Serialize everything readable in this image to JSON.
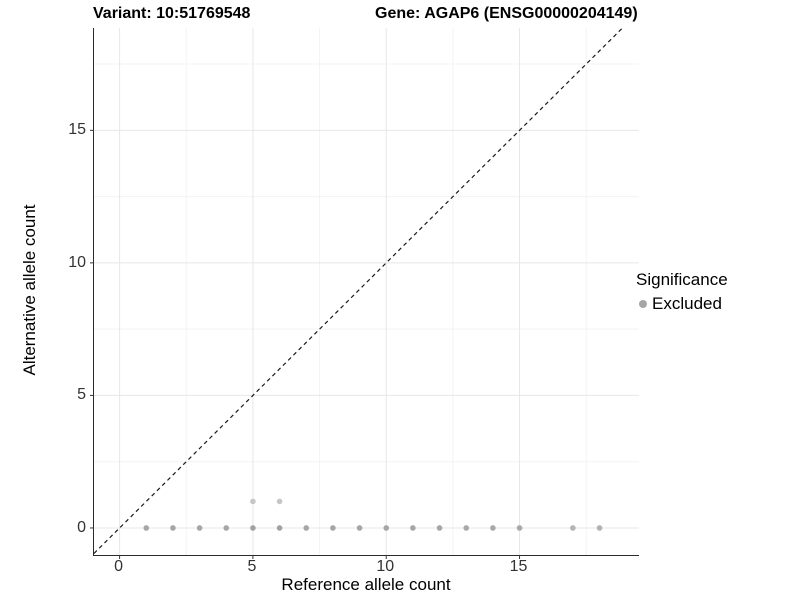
{
  "chart_data": {
    "type": "scatter",
    "title_left": "Variant: 10:51769548",
    "title_right": "Gene: AGAP6 (ENSG00000204149)",
    "xlabel": "Reference allele count",
    "ylabel": "Alternative allele count",
    "xlim": [
      -0.96,
      19.48
    ],
    "ylim": [
      -1.02,
      18.86
    ],
    "x_ticks": [
      0,
      5,
      10,
      15
    ],
    "y_ticks": [
      0,
      5,
      10,
      15
    ],
    "x_minor_ticks": [
      2.5,
      7.5,
      12.5,
      17.5
    ],
    "y_minor_ticks": [
      2.5,
      7.5,
      12.5,
      17.5
    ],
    "grid": true,
    "legend": {
      "position": "right",
      "title": "Significance",
      "entries": [
        {
          "label": "Excluded",
          "color": "#a6a6a6"
        }
      ]
    },
    "identity_line": {
      "type": "dashed",
      "slope": 1,
      "intercept": 0,
      "color": "#1a1a1a"
    },
    "series": [
      {
        "name": "Excluded",
        "points": [
          {
            "x": 1,
            "y": 0,
            "color": "#a6a6a6"
          },
          {
            "x": 2,
            "y": 0,
            "color": "#a6a6a6"
          },
          {
            "x": 3,
            "y": 0,
            "color": "#a6a6a6"
          },
          {
            "x": 4,
            "y": 0,
            "color": "#a6a6a6"
          },
          {
            "x": 5,
            "y": 0,
            "color": "#a2a2a2"
          },
          {
            "x": 6,
            "y": 0,
            "color": "#a2a2a2"
          },
          {
            "x": 7,
            "y": 0,
            "color": "#a6a6a6"
          },
          {
            "x": 8,
            "y": 0,
            "color": "#a6a6a6"
          },
          {
            "x": 9,
            "y": 0,
            "color": "#a6a6a6"
          },
          {
            "x": 10,
            "y": 0,
            "color": "#a6a6a6"
          },
          {
            "x": 11,
            "y": 0,
            "color": "#a6a6a6"
          },
          {
            "x": 12,
            "y": 0,
            "color": "#a6a6a6"
          },
          {
            "x": 13,
            "y": 0,
            "color": "#a8a8a8"
          },
          {
            "x": 14,
            "y": 0,
            "color": "#a8a8a8"
          },
          {
            "x": 15,
            "y": 0,
            "color": "#a8a8a8"
          },
          {
            "x": 17,
            "y": 0,
            "color": "#b4b4b4"
          },
          {
            "x": 18,
            "y": 0,
            "color": "#b2b2b2"
          },
          {
            "x": 5,
            "y": 1,
            "color": "#c6c6c6"
          },
          {
            "x": 6,
            "y": 1,
            "color": "#c6c6c6"
          }
        ]
      }
    ],
    "colors": {
      "grid_major": "#e7e7e7",
      "grid_minor": "#f3f3f3",
      "axis_line": "#2b2b2b",
      "tick_mark": "#333333",
      "point_radius": 2.8
    }
  }
}
